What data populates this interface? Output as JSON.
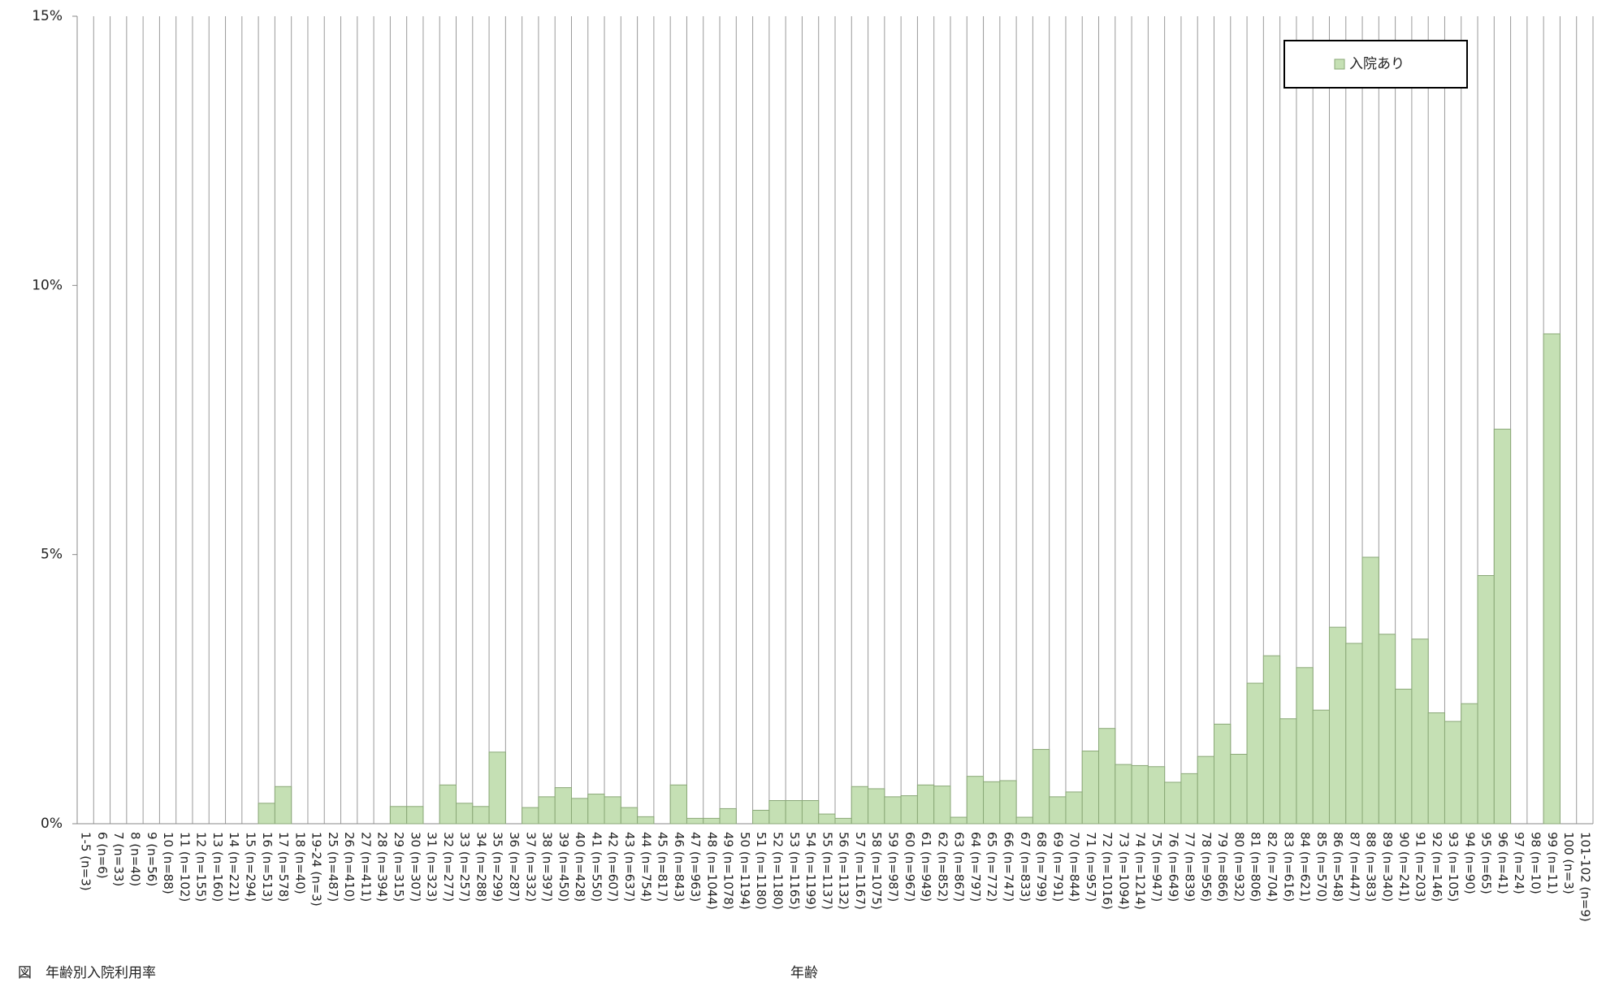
{
  "chart_data": {
    "type": "bar",
    "title": "図　年齢別入院利用率",
    "x_label": "年齢",
    "categories": [
      "1-5 (n=3)",
      "6 (n=6)",
      "7 (n=33)",
      "8 (n=40)",
      "9 (n=56)",
      "10 (n=88)",
      "11 (n=102)",
      "12 (n=155)",
      "13 (n=160)",
      "14 (n=221)",
      "15 (n=294)",
      "16 (n=513)",
      "17 (n=578)",
      "18 (n=40)",
      "19-24 (n=3)",
      "25 (n=487)",
      "26 (n=410)",
      "27 (n=411)",
      "28 (n=394)",
      "29 (n=315)",
      "30 (n=307)",
      "31 (n=323)",
      "32 (n=277)",
      "33 (n=257)",
      "34 (n=288)",
      "35 (n=299)",
      "36 (n=287)",
      "37 (n=332)",
      "38 (n=397)",
      "39 (n=450)",
      "40 (n=428)",
      "41 (n=550)",
      "42 (n=607)",
      "43 (n=637)",
      "44 (n=754)",
      "45 (n=817)",
      "46 (n=843)",
      "47 (n=963)",
      "48 (n=1044)",
      "49 (n=1078)",
      "50 (n=1194)",
      "51 (n=1180)",
      "52 (n=1180)",
      "53 (n=1165)",
      "54 (n=1199)",
      "55 (n=1137)",
      "56 (n=1132)",
      "57 (n=1167)",
      "58 (n=1075)",
      "59 (n=987)",
      "60 (n=967)",
      "61 (n=949)",
      "62 (n=852)",
      "63 (n=867)",
      "64 (n=797)",
      "65 (n=772)",
      "66 (n=747)",
      "67 (n=833)",
      "68 (n=799)",
      "69 (n=791)",
      "70 (n=844)",
      "71 (n=957)",
      "72 (n=1016)",
      "73 (n=1094)",
      "74 (n=1214)",
      "75 (n=947)",
      "76 (n=649)",
      "77 (n=839)",
      "78 (n=956)",
      "79 (n=866)",
      "80 (n=932)",
      "81 (n=806)",
      "82 (n=704)",
      "83 (n=616)",
      "84 (n=621)",
      "85 (n=570)",
      "86 (n=548)",
      "87 (n=447)",
      "88 (n=383)",
      "89 (n=340)",
      "90 (n=241)",
      "91 (n=203)",
      "92 (n=146)",
      "93 (n=105)",
      "94 (n=90)",
      "95 (n=65)",
      "96 (n=41)",
      "97 (n=24)",
      "98 (n=10)",
      "99 (n=11)",
      "100 (n=3)",
      "101-102 (n=9)"
    ],
    "series": [
      {
        "name": "入院あり",
        "color": "#c5e0b4",
        "values": [
          0,
          0,
          0,
          0,
          0,
          0,
          0,
          0,
          0,
          0,
          0,
          0.38,
          0.69,
          0,
          0,
          0,
          0,
          0,
          0,
          0.32,
          0.32,
          0,
          0.72,
          0.38,
          0.32,
          1.33,
          0,
          0.3,
          0.5,
          0.67,
          0.47,
          0.55,
          0.5,
          0.3,
          0.13,
          0,
          0.72,
          0.1,
          0.1,
          0.28,
          0,
          0.25,
          0.43,
          0.43,
          0.43,
          0.18,
          0.1,
          0.69,
          0.65,
          0.5,
          0.52,
          0.72,
          0.7,
          0.12,
          0.88,
          0.78,
          0.8,
          0.12,
          1.38,
          0.5,
          0.59,
          1.35,
          1.77,
          1.1,
          1.08,
          1.06,
          0.77,
          0.93,
          1.25,
          1.85,
          1.29,
          2.61,
          3.12,
          1.95,
          2.9,
          2.11,
          3.65,
          3.35,
          4.95,
          3.52,
          2.5,
          3.43,
          2.06,
          1.9,
          2.23,
          4.61,
          7.33,
          0,
          0,
          9.1,
          0,
          0
        ]
      }
    ],
    "ylim": [
      0,
      15
    ],
    "yticks": [
      {
        "value": 0,
        "label": "0%"
      },
      {
        "value": 5,
        "label": "5%"
      },
      {
        "value": 10,
        "label": "10%"
      },
      {
        "value": 15,
        "label": "15%"
      }
    ],
    "legend": "top-right"
  }
}
